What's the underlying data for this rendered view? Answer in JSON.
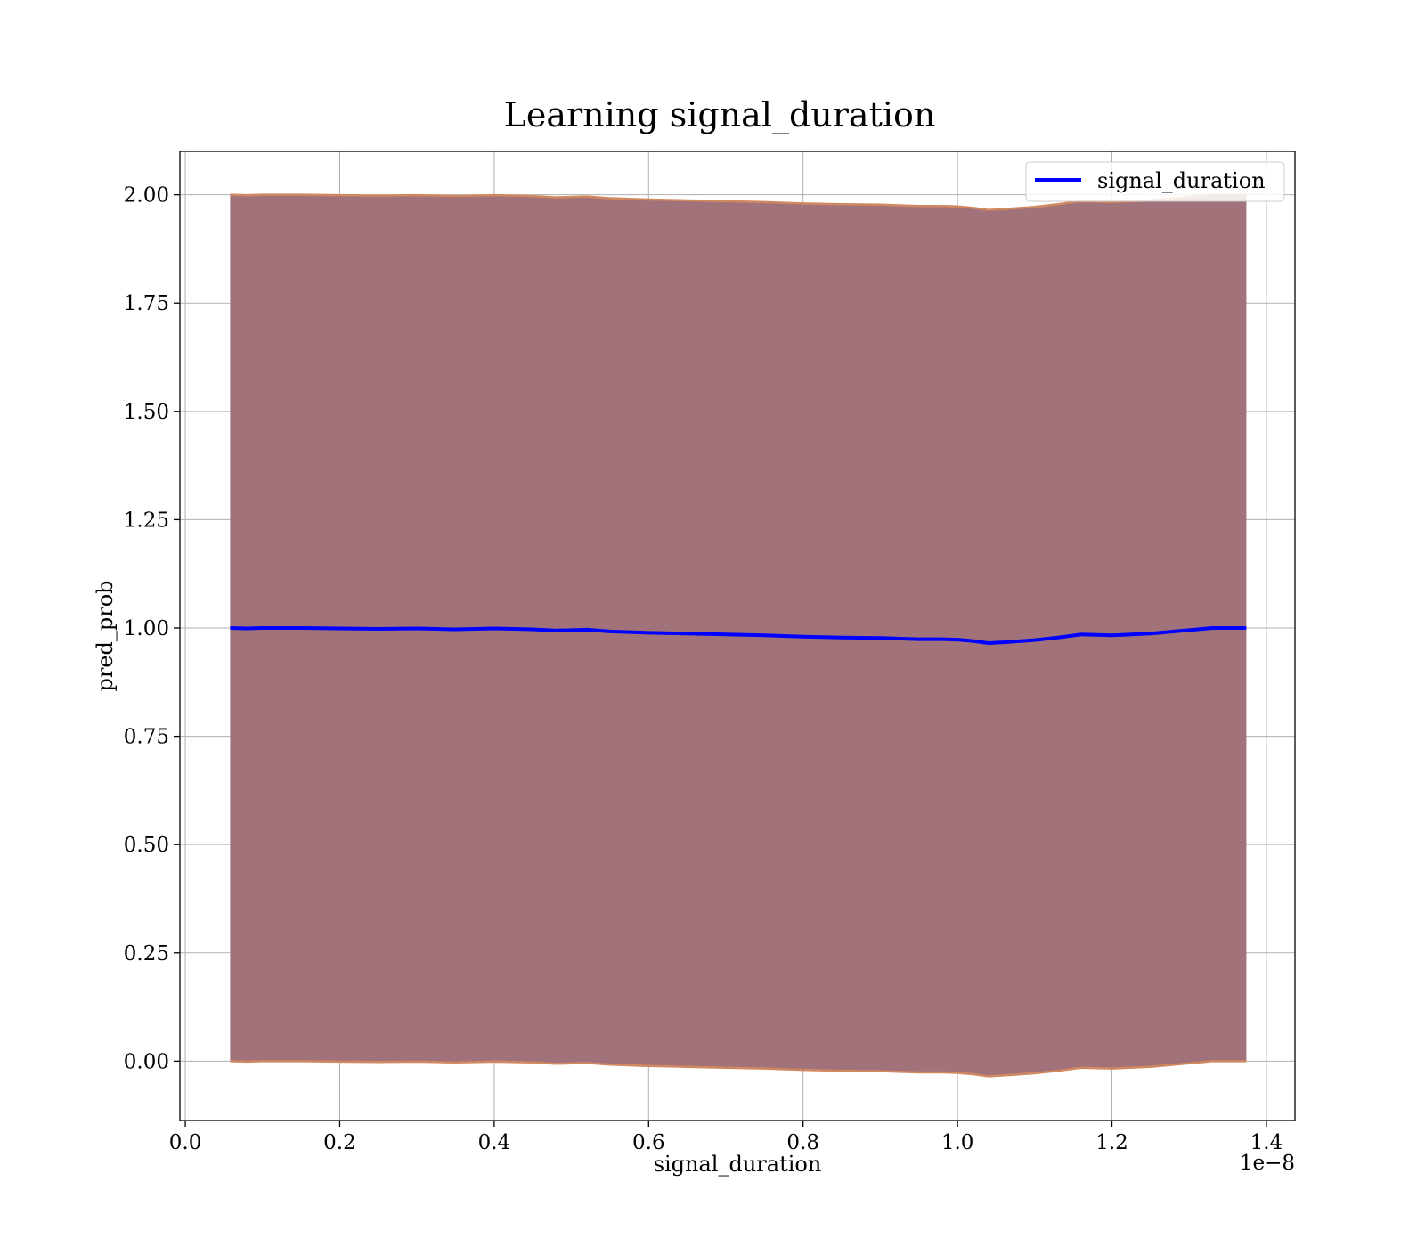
{
  "chart_data": {
    "type": "line",
    "title": "Learning signal_duration",
    "xlabel": "signal_duration",
    "ylabel": "pred_prob",
    "x_offset_text": "1e−8",
    "x_scale_exponent": -8,
    "xlim": [
      -0.007,
      1.437
    ],
    "ylim": [
      -0.137,
      2.1
    ],
    "xticks": [
      0.0,
      0.2,
      0.4,
      0.6,
      0.8,
      1.0,
      1.2,
      1.4
    ],
    "xtick_labels": [
      "0.0",
      "0.2",
      "0.4",
      "0.6",
      "0.8",
      "1.0",
      "1.2",
      "1.4"
    ],
    "yticks": [
      0.0,
      0.25,
      0.5,
      0.75,
      1.0,
      1.25,
      1.5,
      1.75,
      2.0
    ],
    "ytick_labels": [
      "0.00",
      "0.25",
      "0.50",
      "0.75",
      "1.00",
      "1.25",
      "1.50",
      "1.75",
      "2.00"
    ],
    "grid": true,
    "legend_position": "top-right",
    "colors": {
      "line": "#0000ff",
      "band_fill": "#a1727a",
      "band_edge": "#d08860",
      "grid": "#b0b0b0"
    },
    "series": [
      {
        "name": "signal_duration",
        "x": [
          0.058,
          0.08,
          0.1,
          0.15,
          0.2,
          0.25,
          0.3,
          0.35,
          0.4,
          0.45,
          0.48,
          0.52,
          0.55,
          0.6,
          0.65,
          0.7,
          0.75,
          0.8,
          0.85,
          0.9,
          0.95,
          0.98,
          1.0,
          1.02,
          1.04,
          1.06,
          1.1,
          1.13,
          1.16,
          1.2,
          1.25,
          1.3,
          1.33,
          1.374
        ],
        "y": [
          1.0,
          0.999,
          1.0,
          1.0,
          0.999,
          0.998,
          0.999,
          0.997,
          0.999,
          0.997,
          0.994,
          0.996,
          0.992,
          0.989,
          0.987,
          0.985,
          0.983,
          0.98,
          0.978,
          0.977,
          0.974,
          0.974,
          0.973,
          0.97,
          0.965,
          0.967,
          0.972,
          0.978,
          0.985,
          0.983,
          0.987,
          0.995,
          1.0,
          1.0
        ]
      }
    ],
    "band": {
      "upper": [
        2.0,
        1.999,
        2.0,
        2.0,
        1.999,
        1.998,
        1.999,
        1.997,
        1.999,
        1.997,
        1.994,
        1.996,
        1.992,
        1.989,
        1.987,
        1.985,
        1.983,
        1.98,
        1.978,
        1.977,
        1.974,
        1.974,
        1.973,
        1.97,
        1.965,
        1.967,
        1.972,
        1.978,
        1.985,
        1.983,
        1.987,
        1.995,
        2.0,
        2.0
      ],
      "lower": [
        0.0,
        -0.001,
        0.0,
        0.0,
        -0.001,
        -0.002,
        -0.001,
        -0.003,
        -0.001,
        -0.003,
        -0.006,
        -0.004,
        -0.008,
        -0.011,
        -0.013,
        -0.015,
        -0.017,
        -0.02,
        -0.022,
        -0.023,
        -0.026,
        -0.026,
        -0.027,
        -0.03,
        -0.035,
        -0.033,
        -0.028,
        -0.022,
        -0.015,
        -0.017,
        -0.013,
        -0.005,
        0.0,
        0.0
      ]
    }
  }
}
